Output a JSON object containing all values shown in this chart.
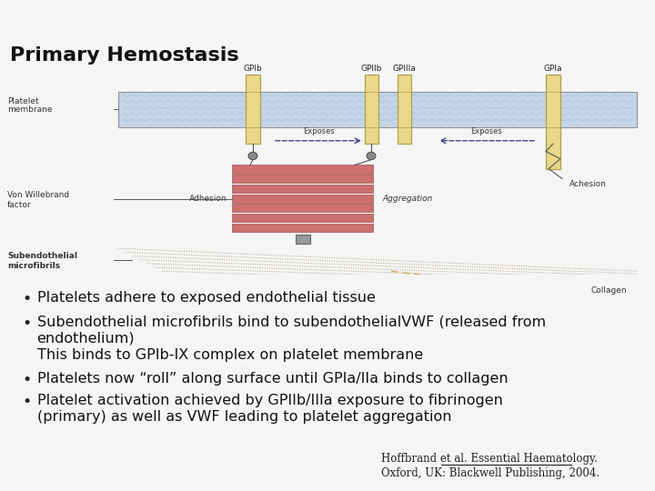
{
  "title": "Primary Hemostasis",
  "title_fontsize": 16,
  "title_color": "#111111",
  "background_color": "#f5f5f5",
  "header_dark_color": "#2e3347",
  "header_teal_color": "#3a8a8c",
  "header_light_teal": "#7bbcbc",
  "header_white_line": "#e8e8e8",
  "bullet_points": [
    "Platelets adhere to exposed endothelial tissue",
    "Subendothelial microfibrils bind to subendothelialVWF (released from\n     endothelium)\n     This binds to GPIb-IX complex on platelet membrane",
    "Platelets now “roll” along surface until GPIa/IIa binds to collagen",
    "Platelet activation achieved by GPIIb/IIIa exposure to fibrinogen\n     (primary) as well as VWF leading to platelet aggregation"
  ],
  "citation_line1": "Hoffbrand et al. Essential Haematology.",
  "citation_line2": "Oxford, UK: Blackwell Publishing, 2004.",
  "platelet_membrane_color": "#c5d5e8",
  "platelet_membrane_border": "#909090",
  "receptor_color": "#e8d888",
  "receptor_border": "#b0a050",
  "platelet_stack_color": "#cc7070",
  "platelet_stack_border": "#a05050",
  "text_color": "#111111",
  "label_fontsize": 6.5,
  "bullet_fontsize": 11.5,
  "diagram_bg": "#f0f0f0"
}
